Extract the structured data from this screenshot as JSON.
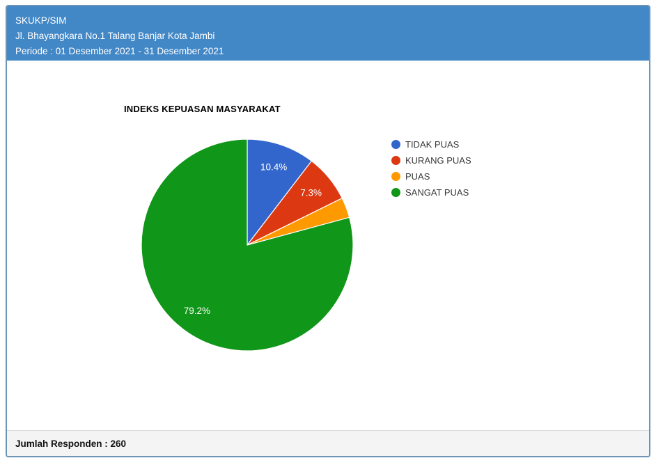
{
  "header": {
    "line1": "SKUKP/SIM",
    "line2": "Jl. Bhayangkara No.1 Talang Banjar Kota Jambi",
    "line3": "Periode : 01 Desember 2021 - 31 Desember 2021"
  },
  "chart_data": {
    "type": "pie",
    "title": "INDEKS KEPUASAN MASYARAKAT",
    "categories": [
      "TIDAK PUAS",
      "KURANG PUAS",
      "PUAS",
      "SANGAT PUAS"
    ],
    "values": [
      10.4,
      7.3,
      3.1,
      79.2
    ],
    "unit": "percent",
    "colors": [
      "#3366cc",
      "#dc3912",
      "#ff9900",
      "#109618"
    ],
    "slice_labels": [
      "10.4%",
      "7.3%",
      "",
      "79.2%"
    ],
    "start_at": "top",
    "direction": "clockwise",
    "legend_position": "right"
  },
  "footer": {
    "label": "Jumlah Responden : 260",
    "respondents": 260
  },
  "theme": {
    "header_bg": "#4287c6",
    "card_border": "#6d94b5",
    "footer_bg": "#f4f4f4"
  }
}
